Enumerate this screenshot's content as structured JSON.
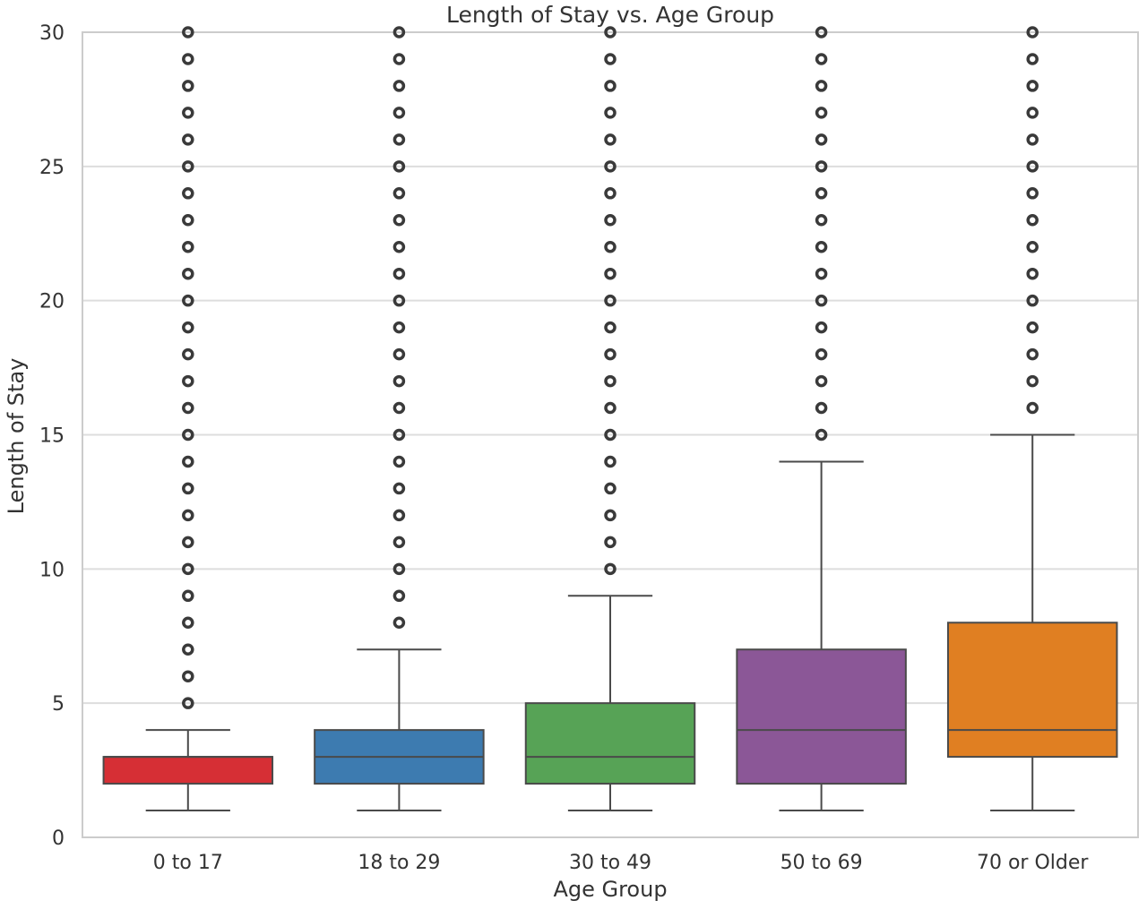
{
  "chart_data": {
    "type": "box",
    "title": "Length of Stay vs. Age Group",
    "xlabel": "Age Group",
    "ylabel": "Length of Stay",
    "ylim": [
      0,
      30
    ],
    "yticks": [
      0,
      5,
      10,
      15,
      20,
      25,
      30
    ],
    "grid": true,
    "categories": [
      "0 to 17",
      "18 to 29",
      "30 to 49",
      "50 to 69",
      "70 or Older"
    ],
    "series": [
      {
        "category": "0 to 17",
        "color": "#d62f35",
        "whisker_low": 1,
        "q1": 2,
        "median": 3,
        "q3": 3,
        "whisker_high": 4,
        "outliers": [
          5,
          6,
          7,
          8,
          9,
          10,
          11,
          12,
          13,
          14,
          15,
          16,
          17,
          18,
          19,
          20,
          21,
          22,
          23,
          24,
          25,
          26,
          27,
          28,
          29,
          30
        ]
      },
      {
        "category": "18 to 29",
        "color": "#3d7bb0",
        "whisker_low": 1,
        "q1": 2,
        "median": 3,
        "q3": 4,
        "whisker_high": 7,
        "outliers": [
          8,
          9,
          10,
          11,
          12,
          13,
          14,
          15,
          16,
          17,
          18,
          19,
          20,
          21,
          22,
          23,
          24,
          25,
          26,
          27,
          28,
          29,
          30
        ]
      },
      {
        "category": "30 to 49",
        "color": "#57a356",
        "whisker_low": 1,
        "q1": 2,
        "median": 3,
        "q3": 5,
        "whisker_high": 9,
        "outliers": [
          10,
          11,
          12,
          13,
          14,
          15,
          16,
          17,
          18,
          19,
          20,
          21,
          22,
          23,
          24,
          25,
          26,
          27,
          28,
          29,
          30
        ]
      },
      {
        "category": "50 to 69",
        "color": "#8b5797",
        "whisker_low": 1,
        "q1": 2,
        "median": 4,
        "q3": 7,
        "whisker_high": 14,
        "outliers": [
          15,
          16,
          17,
          18,
          19,
          20,
          21,
          22,
          23,
          24,
          25,
          26,
          27,
          28,
          29,
          30
        ]
      },
      {
        "category": "70 or Older",
        "color": "#e07f22",
        "whisker_low": 1,
        "q1": 3,
        "median": 4,
        "q3": 8,
        "whisker_high": 15,
        "outliers": [
          16,
          17,
          18,
          19,
          20,
          21,
          22,
          23,
          24,
          25,
          26,
          27,
          28,
          29,
          30
        ]
      }
    ]
  }
}
